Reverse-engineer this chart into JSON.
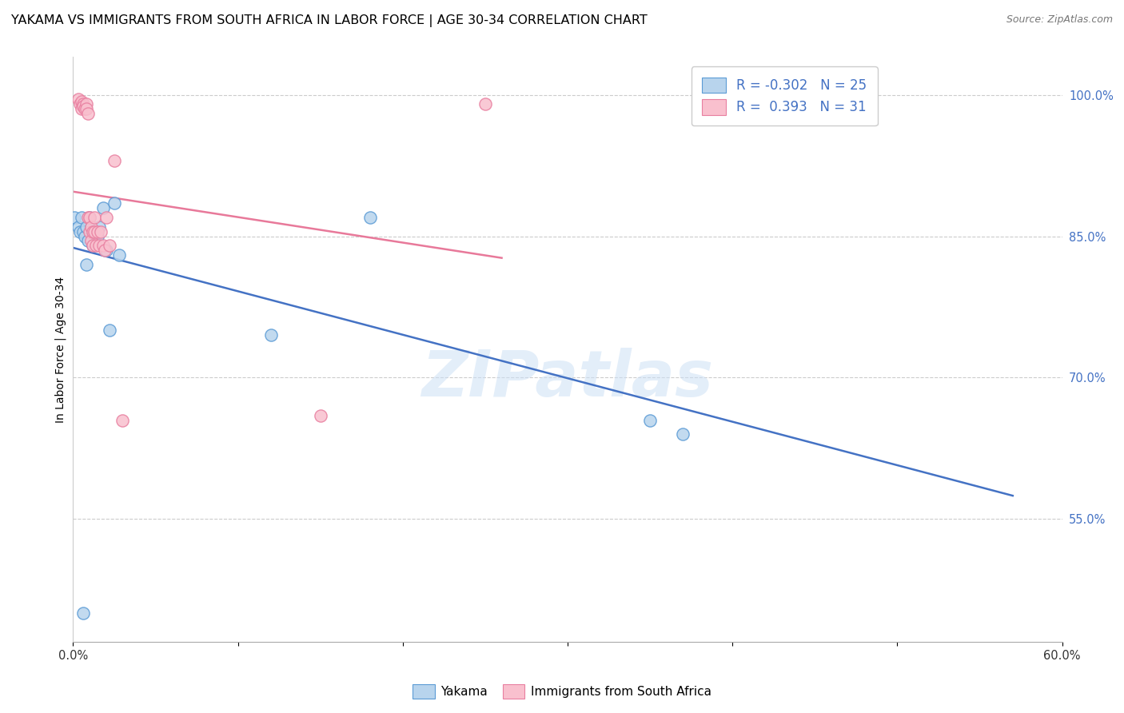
{
  "title": "YAKAMA VS IMMIGRANTS FROM SOUTH AFRICA IN LABOR FORCE | AGE 30-34 CORRELATION CHART",
  "source": "Source: ZipAtlas.com",
  "ylabel": "In Labor Force | Age 30-34",
  "xlim": [
    0.0,
    0.6
  ],
  "ylim": [
    0.42,
    1.04
  ],
  "xticks": [
    0.0,
    0.1,
    0.2,
    0.3,
    0.4,
    0.5,
    0.6
  ],
  "xticklabels": [
    "0.0%",
    "",
    "",
    "",
    "",
    "",
    "60.0%"
  ],
  "yticks_right": [
    0.55,
    0.7,
    0.85,
    1.0
  ],
  "ytick_labels_right": [
    "55.0%",
    "70.0%",
    "85.0%",
    "100.0%"
  ],
  "yakama_x": [
    0.001,
    0.003,
    0.004,
    0.005,
    0.006,
    0.007,
    0.008,
    0.009,
    0.01,
    0.011,
    0.013,
    0.015,
    0.016,
    0.018,
    0.02,
    0.022,
    0.025,
    0.028,
    0.12,
    0.18,
    0.35,
    0.37,
    0.012,
    0.008,
    0.006
  ],
  "yakama_y": [
    0.87,
    0.86,
    0.855,
    0.87,
    0.855,
    0.85,
    0.86,
    0.845,
    0.87,
    0.86,
    0.855,
    0.85,
    0.86,
    0.88,
    0.835,
    0.75,
    0.885,
    0.83,
    0.745,
    0.87,
    0.655,
    0.64,
    0.84,
    0.82,
    0.45
  ],
  "immigrants_x": [
    0.003,
    0.004,
    0.005,
    0.005,
    0.006,
    0.006,
    0.007,
    0.008,
    0.008,
    0.009,
    0.009,
    0.01,
    0.01,
    0.011,
    0.011,
    0.012,
    0.012,
    0.013,
    0.013,
    0.014,
    0.015,
    0.016,
    0.017,
    0.018,
    0.019,
    0.02,
    0.022,
    0.025,
    0.03,
    0.15,
    0.25
  ],
  "immigrants_y": [
    0.995,
    0.99,
    0.993,
    0.985,
    0.99,
    0.988,
    0.985,
    0.99,
    0.985,
    0.98,
    0.87,
    0.87,
    0.855,
    0.86,
    0.845,
    0.855,
    0.84,
    0.87,
    0.855,
    0.84,
    0.855,
    0.84,
    0.855,
    0.84,
    0.835,
    0.87,
    0.84,
    0.93,
    0.655,
    0.66,
    0.99
  ],
  "yakama_dot_color": "#b8d4ed",
  "yakama_dot_edge": "#5b9bd5",
  "imm_dot_color": "#f9c0ce",
  "imm_dot_edge": "#e87fa0",
  "yakama_line_color": "#4472c4",
  "imm_line_color": "#e8799a",
  "legend_r_yakama": "-0.302",
  "legend_n_yakama": "25",
  "legend_r_imm": "0.393",
  "legend_n_imm": "31",
  "watermark": "ZIPatlas",
  "title_fontsize": 11.5,
  "tick_fontsize": 10.5,
  "ylabel_fontsize": 10
}
